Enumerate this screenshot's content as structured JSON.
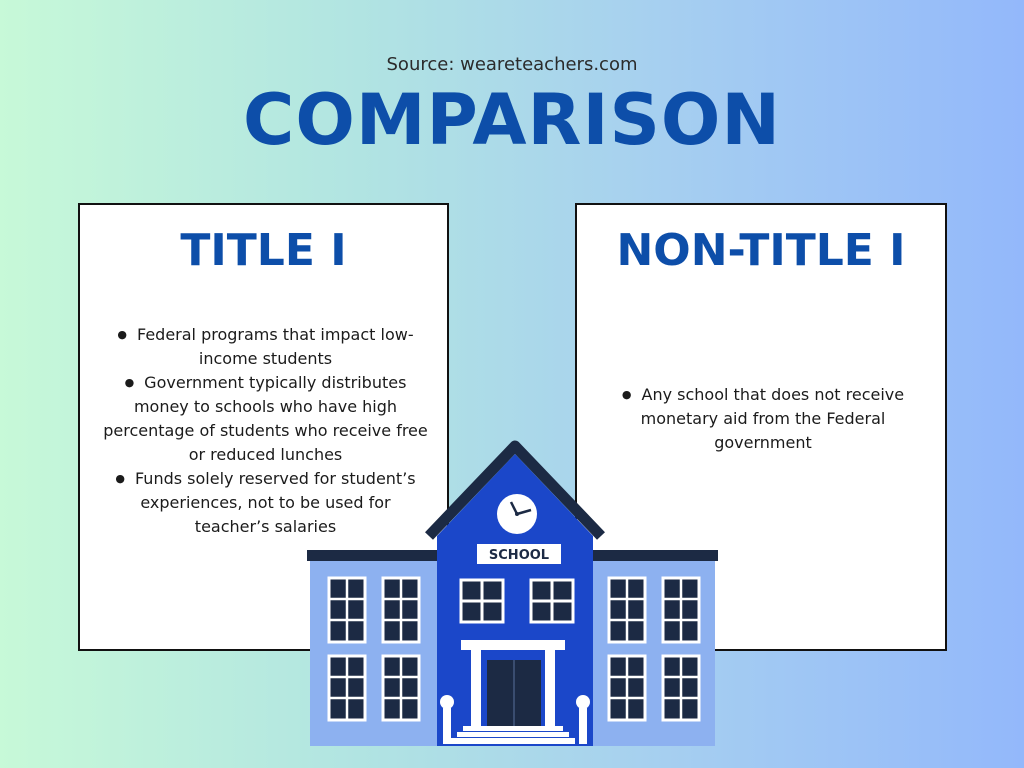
{
  "source": "Source: weareteachers.com",
  "title": "COMPARISON",
  "cards": [
    {
      "heading": "TITLE I",
      "bullets": [
        "Federal programs that impact low-income students",
        "Government typically distributes money to schools who have high percentage of students who receive free or reduced lunches",
        "Funds solely reserved for student’s experiences, not to be used for teacher’s salaries"
      ]
    },
    {
      "heading": "NON-TITLE I",
      "bullets": [
        "Any school that does not receive monetary aid from the Federal government"
      ]
    }
  ],
  "illustration": {
    "sign_text": "SCHOOL",
    "icon": "school-building-icon"
  },
  "colors": {
    "title_blue": "#0d4ea9",
    "building_light": "#8db1f0",
    "building_dark": "#1b47c9",
    "roof": "#1c2a44"
  }
}
